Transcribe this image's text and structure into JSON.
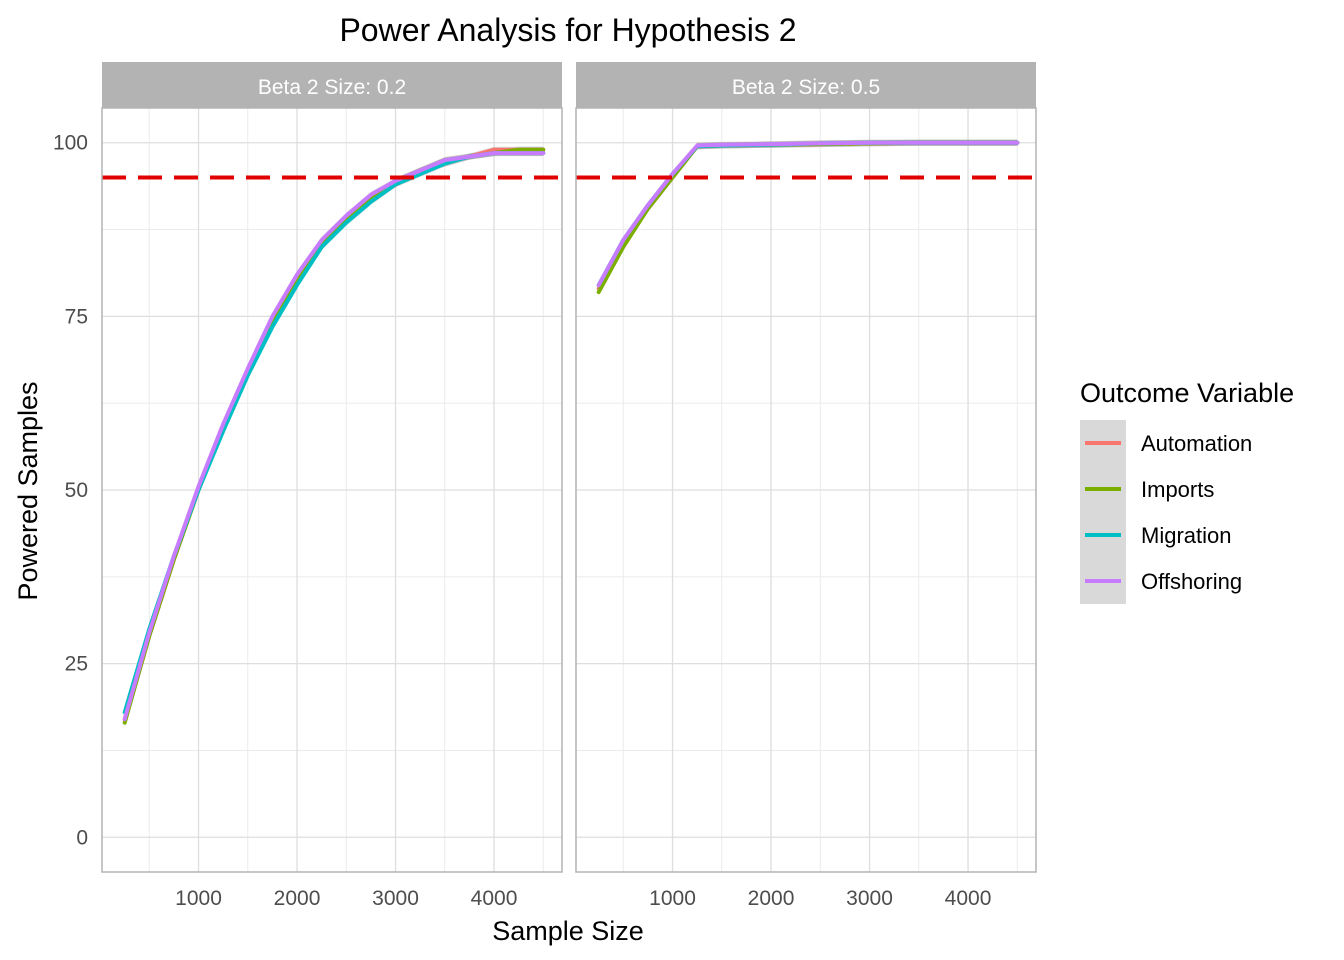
{
  "chart_data": {
    "type": "line",
    "title": "Power Analysis for Hypothesis 2",
    "xlabel": "Sample Size",
    "ylabel": "Powered Samples",
    "x_ticks": [
      1000,
      2000,
      3000,
      4000
    ],
    "y_ticks": [
      0,
      25,
      50,
      75,
      100
    ],
    "ylim": [
      -5,
      105
    ],
    "reference_line": {
      "y": 95,
      "style": "dashed",
      "color": "#e00000"
    },
    "legend": {
      "title": "Outcome Variable",
      "position": "right",
      "entries": [
        {
          "name": "Automation",
          "color": "#F8766D"
        },
        {
          "name": "Imports",
          "color": "#7CAE00"
        },
        {
          "name": "Migration",
          "color": "#00BFC4"
        },
        {
          "name": "Offshoring",
          "color": "#C77CFF"
        }
      ]
    },
    "panels": [
      {
        "strip_label": "Beta 2 Size: 0.2",
        "xlim": [
          20,
          4690
        ],
        "series": [
          {
            "name": "Automation",
            "x": [
              250,
              500,
              750,
              1000,
              1250,
              1500,
              1750,
              2000,
              2250,
              2500,
              2750,
              3000,
              3250,
              3500,
              3750,
              4000,
              4250,
              4500
            ],
            "y": [
              17,
              29,
              40,
              50,
              59,
              67,
              74,
              80,
              85,
              89,
              92,
              94,
              96,
              97,
              98,
              99,
              99,
              99
            ]
          },
          {
            "name": "Imports",
            "x": [
              250,
              500,
              750,
              1000,
              1250,
              1500,
              1750,
              2000,
              2250,
              2500,
              2750,
              3000,
              3250,
              3500,
              3750,
              4000,
              4250,
              4500
            ],
            "y": [
              16.5,
              29,
              40,
              50,
              59,
              67,
              74,
              80.5,
              85.5,
              89,
              92,
              94.5,
              96,
              97.5,
              98,
              98.5,
              99,
              99
            ]
          },
          {
            "name": "Migration",
            "x": [
              250,
              500,
              750,
              1000,
              1250,
              1500,
              1750,
              2000,
              2250,
              2500,
              2750,
              3000,
              3250,
              3500,
              3750,
              4000,
              4250,
              4500
            ],
            "y": [
              18,
              30,
              40.5,
              50,
              58.5,
              66.5,
              73.5,
              79.5,
              85,
              88.5,
              91.5,
              94,
              95.5,
              97,
              98,
              98.5,
              98.5,
              98.5
            ]
          },
          {
            "name": "Offshoring",
            "x": [
              250,
              500,
              750,
              1000,
              1250,
              1500,
              1750,
              2000,
              2250,
              2500,
              2750,
              3000,
              3250,
              3500,
              3750,
              4000,
              4250,
              4500
            ],
            "y": [
              17,
              29.5,
              40.5,
              50.5,
              59.5,
              67.5,
              75,
              81,
              86,
              89.5,
              92.5,
              94.5,
              96,
              97.5,
              98,
              98.5,
              98.5,
              98.5
            ]
          }
        ]
      },
      {
        "strip_label": "Beta 2 Size: 0.5",
        "xlim": [
          20,
          4690
        ],
        "series": [
          {
            "name": "Automation",
            "x": [
              250,
              500,
              750,
              1000,
              1250,
              1500,
              2000,
              2500,
              3000,
              3500,
              4000,
              4500
            ],
            "y": [
              79,
              85.5,
              90.5,
              95,
              99.5,
              99.6,
              99.7,
              99.8,
              99.9,
              100,
              100,
              100
            ]
          },
          {
            "name": "Imports",
            "x": [
              250,
              500,
              750,
              1000,
              1250,
              1500,
              2000,
              2500,
              3000,
              3500,
              4000,
              4500
            ],
            "y": [
              78.5,
              85,
              90.5,
              95,
              99.5,
              99.6,
              99.7,
              99.8,
              99.9,
              100,
              100,
              100
            ]
          },
          {
            "name": "Migration",
            "x": [
              250,
              500,
              750,
              1000,
              1250,
              1500,
              2000,
              2500,
              3000,
              3500,
              4000,
              4500
            ],
            "y": [
              79.5,
              86,
              91,
              95.5,
              99.5,
              99.6,
              99.7,
              99.9,
              100,
              100,
              100,
              100
            ]
          },
          {
            "name": "Offshoring",
            "x": [
              250,
              500,
              750,
              1000,
              1250,
              1500,
              2000,
              2500,
              3000,
              3500,
              4000,
              4500
            ],
            "y": [
              79.5,
              86,
              91,
              95.5,
              99.6,
              99.7,
              99.8,
              99.9,
              100,
              100,
              100,
              100
            ]
          }
        ]
      }
    ]
  }
}
